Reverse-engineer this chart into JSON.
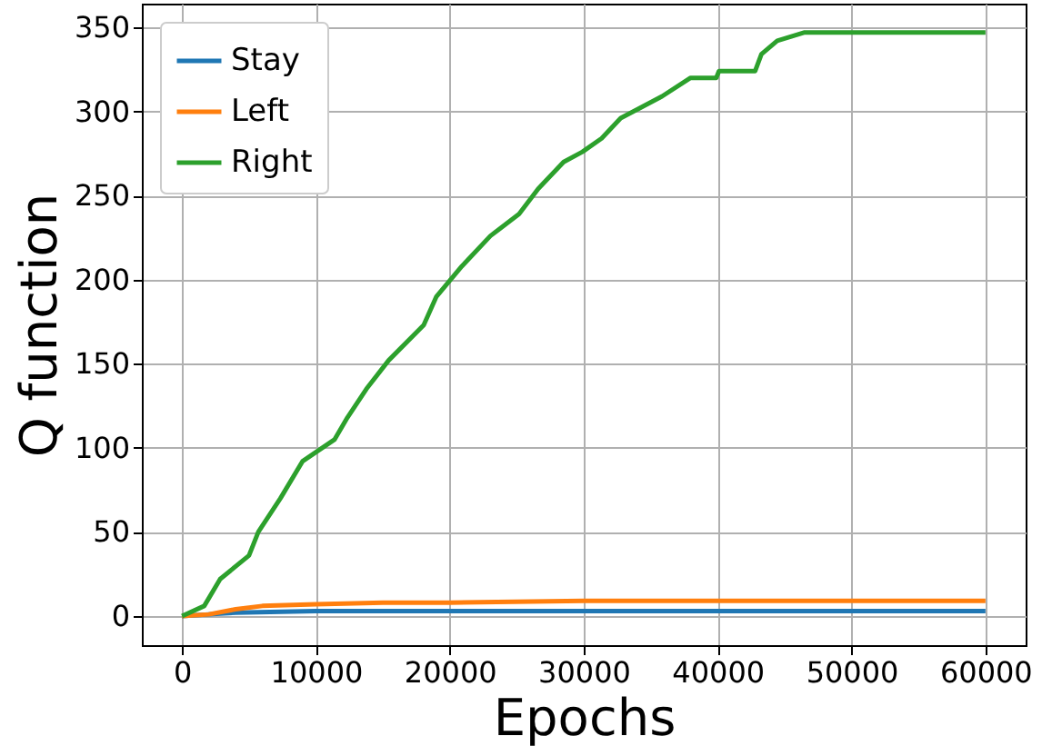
{
  "chart_data": {
    "type": "line",
    "xlabel": "Epochs",
    "ylabel": "Q function",
    "xlim": [
      -3000,
      63000
    ],
    "ylim": [
      -17.3,
      364.1
    ],
    "xticks": [
      0,
      10000,
      20000,
      30000,
      40000,
      50000,
      60000
    ],
    "yticks": [
      0,
      50,
      100,
      150,
      200,
      250,
      300,
      350
    ],
    "grid": true,
    "legend": "top left",
    "line_style": "solid",
    "marker": "none",
    "series": [
      {
        "name": "Stay",
        "color": "#1f77b4",
        "x": [
          0,
          2000,
          4000,
          10000,
          30000,
          60000
        ],
        "values": [
          0,
          1,
          2,
          3,
          3,
          3
        ]
      },
      {
        "name": "Left",
        "color": "#ff7f0e",
        "x": [
          0,
          2000,
          4000,
          6000,
          10000,
          15000,
          20000,
          30000,
          45000,
          60000
        ],
        "values": [
          0,
          1,
          4,
          6,
          7,
          8,
          8,
          9,
          9,
          9
        ]
      },
      {
        "name": "Right",
        "color": "#2ca02c",
        "x": [
          0,
          1660,
          2850,
          5000,
          5700,
          7350,
          9000,
          11400,
          12350,
          13770,
          15430,
          18050,
          19000,
          20900,
          23030,
          25170,
          26600,
          28500,
          29900,
          31340,
          32760,
          34180,
          35850,
          37980,
          39900,
          40100,
          42800,
          43270,
          44450,
          46500,
          60000
        ],
        "values": [
          0,
          6,
          22,
          36,
          50,
          70,
          92,
          105,
          118,
          135,
          152,
          173,
          190,
          208,
          226,
          239,
          254,
          270,
          276,
          284,
          296,
          302,
          309,
          320,
          320,
          324,
          324,
          334,
          342,
          347,
          347
        ]
      }
    ]
  }
}
